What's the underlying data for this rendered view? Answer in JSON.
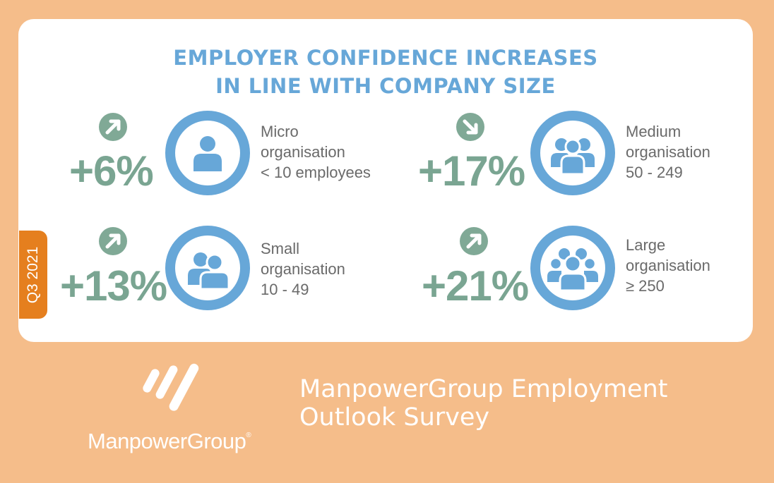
{
  "title": {
    "line1": "EMPLOYER CONFIDENCE INCREASES",
    "line2": "IN LINE WITH COMPANY SIZE"
  },
  "quarter_label": "Q3 2021",
  "tiles": [
    {
      "value": "+6%",
      "arrow": "arrow-up-right-icon",
      "icon": "single-person-icon",
      "lines": [
        "Micro",
        "organisation",
        "< 10 employees"
      ]
    },
    {
      "value": "+17%",
      "arrow": "arrow-down-right-icon",
      "icon": "three-people-icon",
      "lines": [
        "Medium",
        "organisation",
        "50 - 249"
      ]
    },
    {
      "value": "+13%",
      "arrow": "arrow-up-right-icon",
      "icon": "two-people-icon",
      "lines": [
        "Small",
        "organisation",
        "10 - 49"
      ]
    },
    {
      "value": "+21%",
      "arrow": "arrow-up-right-icon",
      "icon": "crowd-icon",
      "lines": [
        "Large",
        "organisation",
        "≥ 250"
      ]
    }
  ],
  "footer": {
    "brand": "ManpowerGroup",
    "brand_mark": "®",
    "survey_line1": "ManpowerGroup Employment",
    "survey_line2": "Outlook Survey"
  },
  "colors": {
    "background": "#f5bd8a",
    "title": "#67a7d8",
    "percent": "#7aa592",
    "ring": "#67a7d8",
    "tab": "#e57f1e"
  }
}
